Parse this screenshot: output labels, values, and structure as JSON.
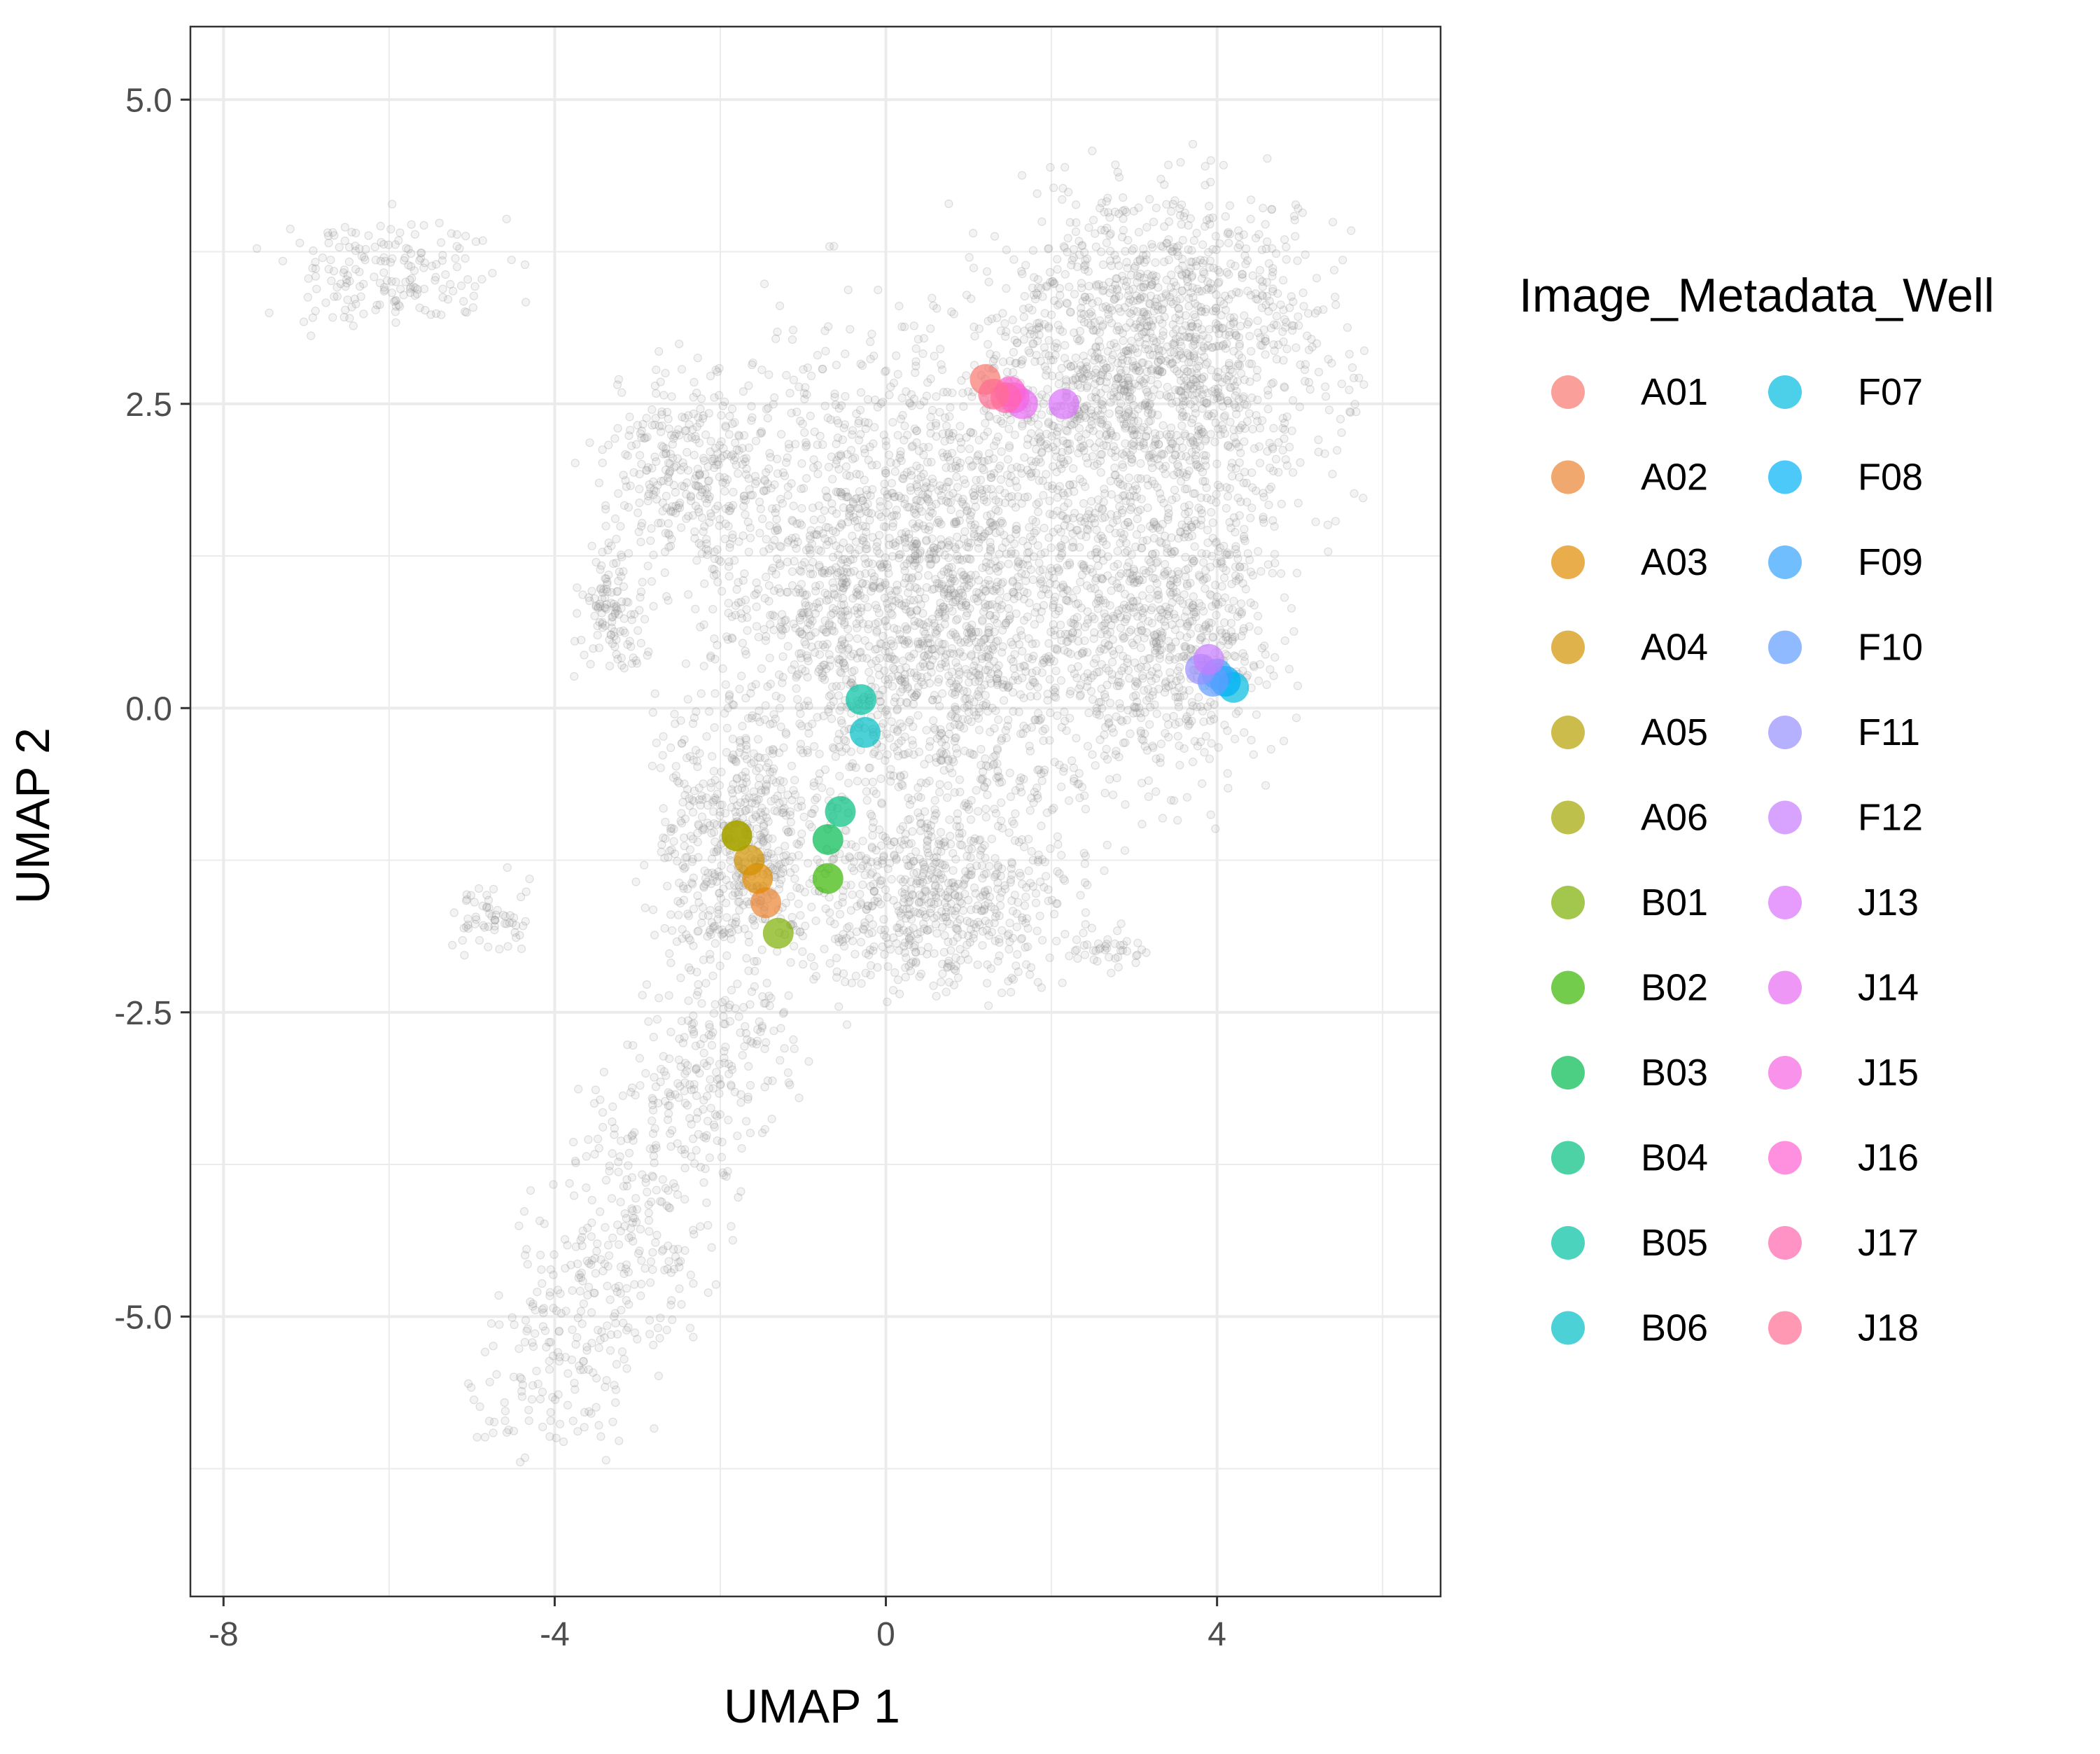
{
  "chart_data": {
    "type": "scatter",
    "xlabel": "UMAP 1",
    "ylabel": "UMAP 2",
    "xlim": [
      -8.4,
      6.7
    ],
    "ylim": [
      -7.3,
      5.6
    ],
    "x_ticks": [
      -8,
      -4,
      0,
      4
    ],
    "x_tick_labels": [
      "-8",
      "-4",
      "0",
      "4"
    ],
    "y_ticks": [
      5.0,
      2.5,
      0.0,
      -2.5,
      -5.0
    ],
    "y_tick_labels": [
      "5.0",
      "2.5",
      "0.0",
      "-2.5",
      "-5.0"
    ],
    "grid": true,
    "legend_position": "right",
    "legend_title": "Image_Metadata_Well",
    "background_cloud": {
      "color": "#8c8c8c",
      "description_of_shape": "grey semi-transparent points forming the full UMAP embedding",
      "regions": [
        {
          "cx": 0.5,
          "cy": 0.9,
          "rx": 2.6,
          "ry": 2.0,
          "n": 2600
        },
        {
          "cx": 3.3,
          "cy": 2.9,
          "rx": 2.0,
          "ry": 1.3,
          "n": 1500
        },
        {
          "cx": 3.5,
          "cy": 0.8,
          "rx": 1.3,
          "ry": 1.3,
          "n": 700
        },
        {
          "cx": -1.8,
          "cy": -1.2,
          "rx": 0.9,
          "ry": 1.0,
          "n": 500
        },
        {
          "cx": 0.6,
          "cy": -1.6,
          "rx": 1.6,
          "ry": 0.7,
          "n": 600
        },
        {
          "cx": -2.4,
          "cy": 2.0,
          "rx": 1.0,
          "ry": 0.8,
          "n": 300
        },
        {
          "cx": -3.3,
          "cy": 0.8,
          "rx": 0.4,
          "ry": 0.5,
          "n": 120
        },
        {
          "cx": -6.0,
          "cy": 3.6,
          "rx": 1.3,
          "ry": 0.45,
          "n": 180
        },
        {
          "cx": -4.8,
          "cy": -1.7,
          "rx": 0.4,
          "ry": 0.3,
          "n": 60
        },
        {
          "cx": 2.7,
          "cy": -2.0,
          "rx": 0.5,
          "ry": 0.2,
          "n": 40
        }
      ],
      "tail": {
        "x0": -1.8,
        "y0": -2.3,
        "x1": -4.2,
        "y1": -6.0,
        "width": 1.6,
        "n": 600
      }
    },
    "series": [
      {
        "name": "A01",
        "color": "#F8766D",
        "points": [
          [
            1.2,
            2.7
          ]
        ]
      },
      {
        "name": "A02",
        "color": "#EA8331",
        "points": [
          [
            -1.45,
            -1.6
          ]
        ]
      },
      {
        "name": "A03",
        "color": "#E18A00",
        "points": [
          [
            -1.55,
            -1.4
          ]
        ]
      },
      {
        "name": "A04",
        "color": "#D39200",
        "points": [
          [
            -1.65,
            -1.25
          ]
        ]
      },
      {
        "name": "A05",
        "color": "#B79F00",
        "points": [
          [
            -1.8,
            -1.05
          ]
        ]
      },
      {
        "name": "A06",
        "color": "#A3A500",
        "points": [
          [
            -1.8,
            -1.05
          ]
        ]
      },
      {
        "name": "B01",
        "color": "#7CAE00",
        "points": [
          [
            -1.3,
            -1.85
          ]
        ]
      },
      {
        "name": "B02",
        "color": "#39B600",
        "points": [
          [
            -0.7,
            -1.4
          ]
        ]
      },
      {
        "name": "B03",
        "color": "#00BB4E",
        "points": [
          [
            -0.7,
            -1.08
          ]
        ]
      },
      {
        "name": "B04",
        "color": "#00BF7D",
        "points": [
          [
            -0.55,
            -0.85
          ]
        ]
      },
      {
        "name": "B05",
        "color": "#00C1A3",
        "points": [
          [
            -0.3,
            0.07
          ]
        ]
      },
      {
        "name": "B06",
        "color": "#00BFC4",
        "points": [
          [
            -0.25,
            -0.2
          ]
        ]
      },
      {
        "name": "F07",
        "color": "#00BAE0",
        "points": [
          [
            4.2,
            0.17
          ]
        ]
      },
      {
        "name": "F08",
        "color": "#00B0F6",
        "points": [
          [
            4.1,
            0.22
          ]
        ]
      },
      {
        "name": "F09",
        "color": "#35A2FF",
        "points": [
          [
            4.0,
            0.28
          ]
        ]
      },
      {
        "name": "F10",
        "color": "#619CFF",
        "points": [
          [
            3.95,
            0.22
          ]
        ]
      },
      {
        "name": "F11",
        "color": "#9590FF",
        "points": [
          [
            3.8,
            0.32
          ]
        ]
      },
      {
        "name": "F12",
        "color": "#C77CFF",
        "points": [
          [
            3.9,
            0.4
          ]
        ]
      },
      {
        "name": "J13",
        "color": "#DB72FB",
        "points": [
          [
            2.15,
            2.5
          ]
        ]
      },
      {
        "name": "J14",
        "color": "#E76BF3",
        "points": [
          [
            1.65,
            2.5
          ]
        ]
      },
      {
        "name": "J15",
        "color": "#F564E3",
        "points": [
          [
            1.55,
            2.55
          ]
        ]
      },
      {
        "name": "J16",
        "color": "#FD61D1",
        "points": [
          [
            1.5,
            2.6
          ]
        ]
      },
      {
        "name": "J17",
        "color": "#FF65AE",
        "points": [
          [
            1.45,
            2.55
          ]
        ]
      },
      {
        "name": "J18",
        "color": "#FF6C91",
        "points": [
          [
            1.3,
            2.58
          ]
        ]
      }
    ]
  }
}
